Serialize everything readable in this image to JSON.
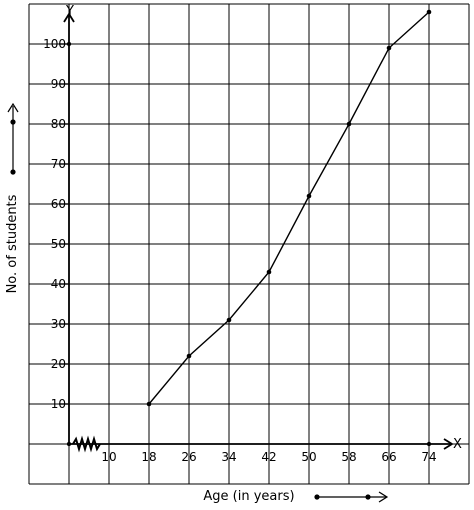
{
  "chart_data": {
    "type": "line",
    "title": "",
    "xlabel": "Age (in years)",
    "ylabel": "No. of students",
    "x_axis_symbol": "X",
    "y_axis_symbol": "Y",
    "x_ticks": [
      10,
      18,
      26,
      34,
      42,
      50,
      58,
      66,
      74
    ],
    "y_ticks": [
      10,
      20,
      30,
      40,
      50,
      60,
      70,
      80,
      90,
      100
    ],
    "xlim": [
      2,
      82
    ],
    "ylim": [
      0,
      110
    ],
    "grid": true,
    "x_axis_break": true,
    "series": [
      {
        "x": [
          18,
          26,
          34,
          42,
          50,
          58,
          66,
          74
        ],
        "y": [
          10,
          22,
          31,
          43,
          62,
          80,
          99,
          108
        ]
      }
    ],
    "colors": {
      "line": "#000000",
      "grid": "#000000",
      "background": "#ffffff"
    }
  }
}
